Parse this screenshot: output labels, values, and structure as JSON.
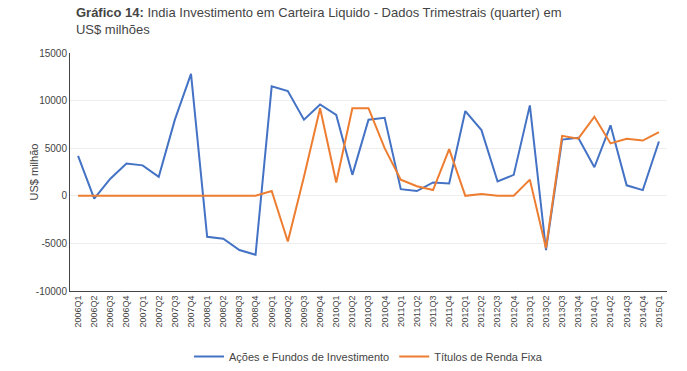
{
  "chart_data": {
    "type": "line",
    "title": "Gráfico 14: India Investimento em Carteira Liquido - Dados Trimestrais (quarter) em\nUS$ milhões",
    "ylabel": "US$ milhão",
    "categories": [
      "2006Q1",
      "2006Q2",
      "2006Q3",
      "2006Q4",
      "2007Q1",
      "2007Q2",
      "2007Q3",
      "2007Q4",
      "2008Q1",
      "2008Q2",
      "2008Q3",
      "2008Q4",
      "2009Q1",
      "2009Q2",
      "2009Q3",
      "2009Q4",
      "2010Q1",
      "2010Q2",
      "2010Q3",
      "2010Q4",
      "2011Q1",
      "2011Q2",
      "2011Q3",
      "2011Q4",
      "2012Q1",
      "2012Q2",
      "2012Q3",
      "2012Q4",
      "2013Q1",
      "2013Q2",
      "2013Q3",
      "2013Q4",
      "2014Q1",
      "2014Q2",
      "2014Q3",
      "2014Q4",
      "2015Q1"
    ],
    "series": [
      {
        "name": "Ações e Fundos de Investimento",
        "color": "#4472C4",
        "values": [
          4200,
          -300,
          1800,
          3400,
          3200,
          2000,
          8000,
          12800,
          -4300,
          -4500,
          -5700,
          -6200,
          11500,
          11000,
          8000,
          9600,
          8500,
          2200,
          8000,
          8200,
          700,
          500,
          1400,
          1300,
          8900,
          6900,
          1500,
          2200,
          9500,
          -5700,
          5900,
          6100,
          3000,
          7400,
          1100,
          600,
          5700
        ]
      },
      {
        "name": "Títulos de Renda Fixa",
        "color": "#ED7D31",
        "values": [
          0,
          0,
          0,
          0,
          0,
          0,
          0,
          0,
          0,
          0,
          0,
          0,
          500,
          -4800,
          2000,
          9200,
          1400,
          9200,
          9200,
          5000,
          1700,
          1000,
          600,
          4900,
          0,
          200,
          0,
          0,
          1700,
          -5500,
          6300,
          6000,
          8300,
          5500,
          6000,
          5800,
          6700
        ]
      }
    ],
    "ylim": [
      -10000,
      15000
    ],
    "yticks": [
      -10000,
      -5000,
      0,
      5000,
      10000,
      15000
    ],
    "grid": true,
    "legend": "bottom"
  }
}
